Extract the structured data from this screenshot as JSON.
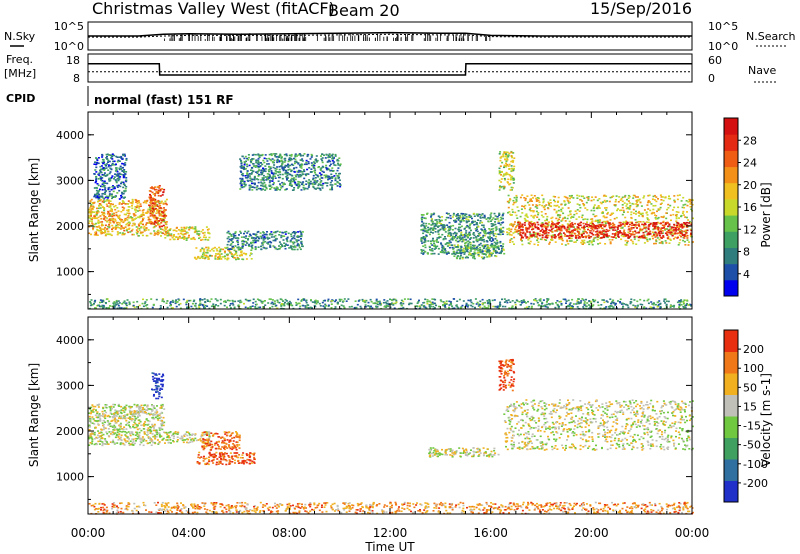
{
  "header": {
    "station": "Christmas Valley West (fitACF)",
    "beam": "Beam 20",
    "date": "15/Sep/2016"
  },
  "strip_labels": {
    "nsky": "N.Sky",
    "nsky_hi": "10^5",
    "nsky_lo": "10^0",
    "nsearch": "N.Search",
    "nsearch_hi": "10^5",
    "nsearch_lo": "10^0",
    "freq": "Freq.",
    "freq_unit": "[MHz]",
    "freq_hi": "18",
    "freq_lo": "8",
    "nave": "Nave",
    "nave_hi": "60",
    "nave_lo": "0",
    "cpid": "CPID",
    "mode": "normal (fast) 151 RF"
  },
  "chart_data": [
    {
      "type": "line",
      "panel": "noise",
      "x": [
        "00:00",
        "02:00",
        "03:00",
        "04:00",
        "06:00",
        "08:00",
        "10:00",
        "12:00",
        "14:00",
        "15:00",
        "16:00",
        "18:00",
        "20:00",
        "22:00",
        "24:00"
      ],
      "series": [
        {
          "name": "N.Sky",
          "values": [
            2.5,
            2.5,
            2.8,
            2.9,
            2.8,
            2.9,
            3.0,
            3.1,
            3.0,
            3.0,
            2.6,
            2.5,
            2.5,
            2.5,
            2.5
          ]
        },
        {
          "name": "N.Search",
          "values": [
            2.3,
            2.3,
            2.5,
            2.6,
            2.6,
            2.6,
            2.7,
            2.8,
            2.7,
            2.7,
            2.4,
            2.3,
            2.3,
            2.3,
            2.3
          ]
        }
      ],
      "ylim": [
        0,
        5
      ]
    },
    {
      "type": "line",
      "panel": "frequency",
      "x": [
        "00:00",
        "02:50",
        "02:51",
        "15:00",
        "15:01",
        "24:00"
      ],
      "series": [
        {
          "name": "Freq.",
          "values": [
            14.5,
            14.5,
            10.5,
            10.5,
            14.5,
            14.5
          ]
        },
        {
          "name": "Nave",
          "values": [
            22,
            22,
            22,
            22,
            22,
            22
          ]
        }
      ],
      "ylim": [
        8,
        18
      ]
    },
    {
      "type": "heatmap",
      "panel": "power",
      "xlabel": "",
      "ylabel": "Slant Range [km]",
      "xlim": [
        0,
        24
      ],
      "ylim": [
        180,
        4500
      ],
      "x_ticks": [
        "00:00",
        "04:00",
        "08:00",
        "12:00",
        "16:00",
        "20:00",
        "00:00"
      ],
      "y_ticks": [
        "1000",
        "2000",
        "3000",
        "4000"
      ],
      "colorbar": {
        "label": "Power [dB]",
        "ticks": [
          "4",
          "8",
          "12",
          "16",
          "20",
          "24",
          "28"
        ],
        "colors": [
          "#0000ee",
          "#1d4fa8",
          "#2f7d7d",
          "#3fa063",
          "#66c24b",
          "#c9d92c",
          "#f0c020",
          "#f29018",
          "#ef5d15",
          "#e42a12",
          "#d41010"
        ]
      },
      "regions": [
        {
          "t0": 0.0,
          "t1": 3.1,
          "r0": 1800,
          "r1": 2600,
          "level": 0.6
        },
        {
          "t0": 0.2,
          "t1": 1.5,
          "r0": 2600,
          "r1": 3600,
          "level": 0.2
        },
        {
          "t0": 2.4,
          "t1": 3.0,
          "r0": 2000,
          "r1": 2900,
          "level": 0.8
        },
        {
          "t0": 3.0,
          "t1": 4.8,
          "r0": 1700,
          "r1": 2000,
          "level": 0.55
        },
        {
          "t0": 4.2,
          "t1": 6.5,
          "r0": 1280,
          "r1": 1550,
          "level": 0.5
        },
        {
          "t0": 5.5,
          "t1": 8.5,
          "r0": 1500,
          "r1": 1900,
          "level": 0.25
        },
        {
          "t0": 6.0,
          "t1": 10.0,
          "r0": 2800,
          "r1": 3600,
          "level": 0.25
        },
        {
          "t0": 13.2,
          "t1": 16.5,
          "r0": 1400,
          "r1": 2300,
          "level": 0.3
        },
        {
          "t0": 14.5,
          "t1": 16.2,
          "r0": 1300,
          "r1": 1600,
          "level": 0.35
        },
        {
          "t0": 16.3,
          "t1": 16.9,
          "r0": 2800,
          "r1": 3650,
          "level": 0.5
        },
        {
          "t0": 16.6,
          "t1": 24.0,
          "r0": 1600,
          "r1": 2700,
          "level": 0.55
        },
        {
          "t0": 17.0,
          "t1": 24.0,
          "r0": 1750,
          "r1": 2100,
          "level": 0.9
        },
        {
          "t0": 0.0,
          "t1": 24.0,
          "r0": 200,
          "r1": 420,
          "level": 0.3
        }
      ]
    },
    {
      "type": "heatmap",
      "panel": "velocity",
      "xlabel": "Time UT",
      "ylabel": "Slant Range [km]",
      "xlim": [
        0,
        24
      ],
      "ylim": [
        180,
        4500
      ],
      "x_ticks": [
        "00:00",
        "04:00",
        "08:00",
        "12:00",
        "16:00",
        "20:00",
        "00:00"
      ],
      "y_ticks": [
        "1000",
        "2000",
        "3000",
        "4000"
      ],
      "colorbar": {
        "label": "Velocity [m s-1]",
        "ticks": [
          "200",
          "100",
          "50",
          "15",
          "-15",
          "-50",
          "-100",
          "-200"
        ],
        "colors": [
          "#2030c8",
          "#3070a0",
          "#40a060",
          "#70c840",
          "#c0c0b8",
          "#f0b020",
          "#f07818",
          "#e83010"
        ]
      },
      "regions": [
        {
          "t0": 0.0,
          "t1": 3.0,
          "r0": 1700,
          "r1": 2600,
          "level": 0.55
        },
        {
          "t0": 2.5,
          "t1": 2.95,
          "r0": 2700,
          "r1": 3300,
          "level": 0.0
        },
        {
          "t0": 3.0,
          "t1": 4.8,
          "r0": 1750,
          "r1": 2000,
          "level": 0.55
        },
        {
          "t0": 4.3,
          "t1": 6.6,
          "r0": 1280,
          "r1": 1550,
          "level": 0.88
        },
        {
          "t0": 4.5,
          "t1": 6.0,
          "r0": 1600,
          "r1": 2000,
          "level": 0.85
        },
        {
          "t0": 13.5,
          "t1": 16.3,
          "r0": 1450,
          "r1": 1650,
          "level": 0.55
        },
        {
          "t0": 16.3,
          "t1": 16.9,
          "r0": 2900,
          "r1": 3600,
          "level": 0.9
        },
        {
          "t0": 16.5,
          "t1": 24.0,
          "r0": 1600,
          "r1": 2700,
          "level": 0.57
        },
        {
          "t0": 0.0,
          "t1": 24.0,
          "r0": 200,
          "r1": 450,
          "level": 0.75
        }
      ]
    }
  ]
}
